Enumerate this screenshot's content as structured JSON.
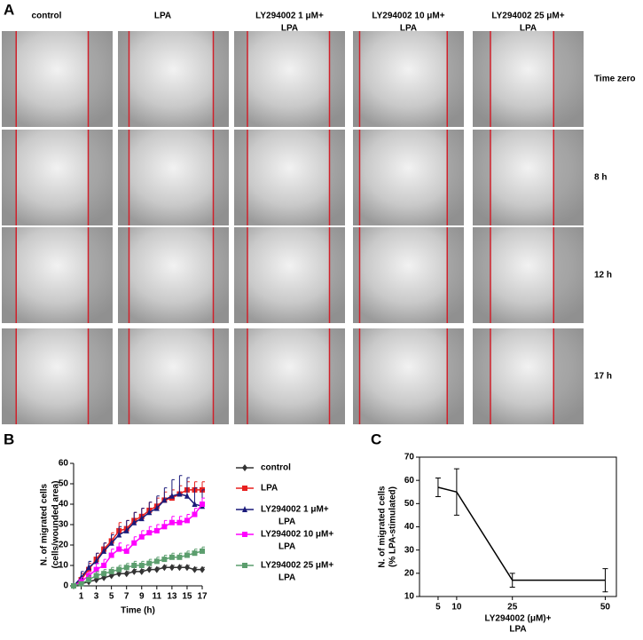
{
  "panel_labels": [
    "A",
    "B",
    "C"
  ],
  "panel_a": {
    "columns": [
      [
        "control"
      ],
      [
        "LPA"
      ],
      [
        "LY294002 1 μM+",
        "LPA"
      ],
      [
        "LY294002 10 μM+",
        "LPA"
      ],
      [
        "LY294002 25 μM+",
        "LPA"
      ]
    ],
    "rows": [
      "Time zero",
      "8 h",
      "12 h",
      "17 h"
    ]
  },
  "chart_data": [
    {
      "type": "line",
      "xlabel": "Time (h)",
      "ylabel": [
        "N. of migrated cells",
        "(cells/wounded area)"
      ],
      "x": [
        0,
        1,
        2,
        3,
        4,
        5,
        6,
        7,
        8,
        9,
        10,
        11,
        12,
        13,
        14,
        15,
        16,
        17
      ],
      "xlim": [
        0,
        17
      ],
      "xticks": [
        1,
        3,
        5,
        7,
        9,
        11,
        13,
        15,
        17
      ],
      "ylim": [
        0,
        60
      ],
      "yticks": [
        0,
        10,
        20,
        30,
        40,
        50,
        60
      ],
      "series": [
        {
          "name": [
            "control"
          ],
          "color": "#333333",
          "marker": "diamond",
          "values": [
            0,
            1,
            2,
            3,
            4,
            5,
            6,
            6,
            7,
            7,
            8,
            8,
            9,
            9,
            9,
            9,
            8,
            8
          ],
          "errors": [
            0,
            1,
            1,
            1,
            1,
            1,
            1,
            1,
            1,
            1,
            1,
            1,
            1,
            1,
            1,
            1,
            1,
            1
          ]
        },
        {
          "name": [
            "LPA"
          ],
          "color": "#e8201f",
          "marker": "square",
          "values": [
            0,
            3,
            8,
            13,
            18,
            22,
            27,
            28,
            32,
            34,
            37,
            39,
            42,
            43,
            45,
            47,
            47,
            47
          ],
          "errors": [
            0,
            3,
            3,
            3,
            3,
            4,
            4,
            4,
            4,
            4,
            4,
            4,
            4,
            4,
            4,
            4,
            4,
            4
          ]
        },
        {
          "name": [
            "LY294002 1 μM+",
            "LPA"
          ],
          "color": "#1a1a7a",
          "marker": "triangle",
          "values": [
            0,
            4,
            9,
            12,
            17,
            21,
            25,
            27,
            31,
            33,
            36,
            38,
            42,
            44,
            45,
            44,
            40,
            39
          ],
          "errors": [
            0,
            3,
            3,
            4,
            4,
            4,
            4,
            5,
            5,
            5,
            5,
            6,
            6,
            8,
            9,
            9,
            8,
            8
          ]
        },
        {
          "name": [
            "LY294002 10 μM+",
            "LPA"
          ],
          "color": "#ff00ff",
          "marker": "square",
          "values": [
            0,
            2,
            5,
            8,
            10,
            15,
            18,
            17,
            21,
            24,
            26,
            27,
            29,
            31,
            31,
            32,
            35,
            40
          ],
          "errors": [
            0,
            2,
            2,
            3,
            3,
            3,
            3,
            3,
            3,
            3,
            3,
            3,
            3,
            3,
            3,
            3,
            3,
            3
          ]
        },
        {
          "name": [
            "LY294002 25 μM+",
            "LPA"
          ],
          "color": "#5c9e6e",
          "marker": "square",
          "values": [
            0,
            1,
            3,
            5,
            6,
            7,
            8,
            9,
            10,
            10,
            11,
            12,
            13,
            14,
            14,
            15,
            16,
            17
          ],
          "errors": [
            0,
            1,
            2,
            2,
            2,
            2,
            2,
            2,
            2,
            2,
            2,
            2,
            2,
            2,
            2,
            2,
            2,
            2
          ]
        }
      ]
    },
    {
      "type": "line",
      "xlabel": [
        "LY294002 (μM)+",
        "LPA"
      ],
      "ylabel": [
        "N. of migrated cells",
        "(% LPA-stimulated)"
      ],
      "x": [
        5,
        10,
        25,
        50
      ],
      "xlim": [
        0,
        53
      ],
      "xticks": [
        5,
        10,
        25,
        50
      ],
      "ylim": [
        10,
        70
      ],
      "yticks": [
        10,
        20,
        30,
        40,
        50,
        60,
        70
      ],
      "series": [
        {
          "color": "#000000",
          "values": [
            57,
            55,
            17,
            17
          ],
          "errors": [
            4,
            10,
            3,
            5
          ]
        }
      ]
    }
  ]
}
